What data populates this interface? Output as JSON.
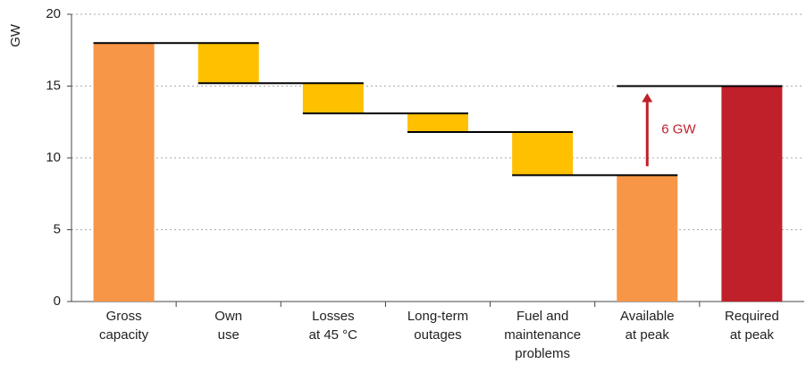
{
  "chart_data": {
    "type": "waterfall",
    "y_label": "GW",
    "categories": [
      [
        "Gross",
        "capacity"
      ],
      [
        "Own",
        "use"
      ],
      [
        "Losses",
        "at 45 °C"
      ],
      [
        "Long-term",
        "outages"
      ],
      [
        "Fuel and",
        "maintenance",
        "problems"
      ],
      [
        "Available",
        "at peak"
      ],
      [
        "Required",
        "at peak"
      ]
    ],
    "values": [
      18,
      -2.8,
      -2.1,
      -1.3,
      -3.0,
      8.8,
      15
    ],
    "measure": [
      "absolute",
      "relative",
      "relative",
      "relative",
      "relative",
      "absolute",
      "absolute"
    ],
    "colors": [
      "#f79646",
      "#ffc000",
      "#ffc000",
      "#ffc000",
      "#ffc000",
      "#f79646",
      "#c0202a"
    ],
    "ylim": [
      0,
      20
    ],
    "yticks": [
      0,
      5,
      10,
      15,
      20
    ],
    "grid": true,
    "annotation": {
      "text": "6 GW",
      "color": "#c0202a"
    }
  }
}
